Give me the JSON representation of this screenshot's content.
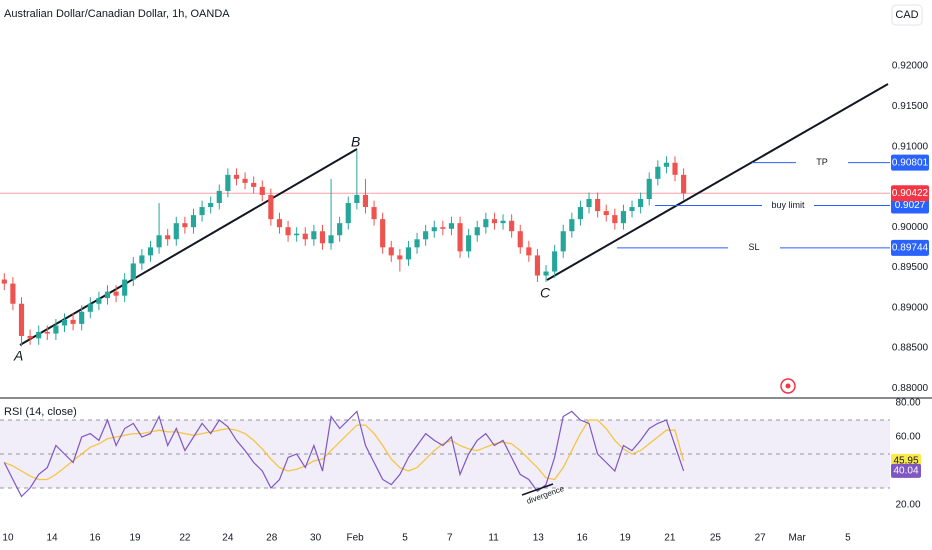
{
  "chart_data": {
    "type": "candlestick",
    "title": "Australian Dollar/Canadian Dollar, 1h, OANDA",
    "currency": "CAD",
    "up_color": "#26a69a",
    "down_color": "#ef5350",
    "open": [
      0.8935,
      0.893,
      0.8905,
      0.8865,
      0.8862,
      0.887,
      0.8868,
      0.8878,
      0.8885,
      0.888,
      0.8895,
      0.8905,
      0.8912,
      0.892,
      0.8915,
      0.8935,
      0.8955,
      0.8965,
      0.8975,
      0.899,
      0.8985,
      0.9005,
      0.9,
      0.9015,
      0.9025,
      0.903,
      0.9045,
      0.9065,
      0.906,
      0.9055,
      0.905,
      0.904,
      0.901,
      0.9,
      0.899,
      0.8992,
      0.8985,
      0.8995,
      0.898,
      0.899,
      0.9005,
      0.903,
      0.904,
      0.9025,
      0.901,
      0.8975,
      0.8965,
      0.896,
      0.8975,
      0.8985,
      0.8995,
      0.9,
      0.8998,
      0.9005,
      0.897,
      0.899,
      0.9,
      0.901,
      0.9005,
      0.9008,
      0.8995,
      0.8975,
      0.8965,
      0.894,
      0.8945,
      0.897,
      0.8995,
      0.901,
      0.9025,
      0.9035,
      0.902,
      0.9015,
      0.9005,
      0.902,
      0.9025,
      0.9035,
      0.906,
      0.9075,
      0.908,
      0.9065
    ],
    "high": [
      0.8943,
      0.8938,
      0.8913,
      0.8873,
      0.8878,
      0.8878,
      0.8886,
      0.8893,
      0.8893,
      0.8903,
      0.8913,
      0.892,
      0.8928,
      0.8928,
      0.8943,
      0.8963,
      0.8973,
      0.8983,
      0.903,
      0.8998,
      0.9013,
      0.9013,
      0.9023,
      0.9033,
      0.9038,
      0.9053,
      0.9073,
      0.9073,
      0.9068,
      0.9063,
      0.9058,
      0.9048,
      0.9018,
      0.9008,
      0.9,
      0.9,
      0.9003,
      0.9003,
      0.906,
      0.9013,
      0.9038,
      0.9095,
      0.906,
      0.9033,
      0.9018,
      0.8983,
      0.8973,
      0.8983,
      0.8993,
      0.9003,
      0.9008,
      0.9008,
      0.9013,
      0.9013,
      0.8998,
      0.9008,
      0.9018,
      0.9018,
      0.9016,
      0.9016,
      0.9003,
      0.8983,
      0.8973,
      0.8953,
      0.8978,
      0.9003,
      0.9018,
      0.9033,
      0.9043,
      0.9043,
      0.9028,
      0.9023,
      0.9028,
      0.9033,
      0.9043,
      0.9068,
      0.9083,
      0.9088,
      0.9088,
      0.9073
    ],
    "low": [
      0.8922,
      0.8897,
      0.8852,
      0.8854,
      0.8854,
      0.886,
      0.886,
      0.887,
      0.8872,
      0.8872,
      0.8887,
      0.8897,
      0.8904,
      0.8907,
      0.8907,
      0.8927,
      0.8947,
      0.8957,
      0.8967,
      0.8977,
      0.8977,
      0.8992,
      0.8992,
      0.9007,
      0.9017,
      0.9022,
      0.9037,
      0.9052,
      0.9047,
      0.9042,
      0.9032,
      0.9002,
      0.8992,
      0.8982,
      0.8982,
      0.8977,
      0.8977,
      0.8972,
      0.8972,
      0.8982,
      0.8997,
      0.9022,
      0.9017,
      0.9002,
      0.8967,
      0.8957,
      0.8945,
      0.8952,
      0.8967,
      0.8977,
      0.8987,
      0.899,
      0.899,
      0.8962,
      0.8962,
      0.8982,
      0.8992,
      0.8997,
      0.8997,
      0.8987,
      0.8967,
      0.8957,
      0.8932,
      0.8932,
      0.8937,
      0.8962,
      0.8987,
      0.9002,
      0.9017,
      0.9012,
      0.9007,
      0.8997,
      0.8997,
      0.9012,
      0.9017,
      0.9027,
      0.9052,
      0.9067,
      0.9057,
      0.9034
    ],
    "close": [
      0.893,
      0.8905,
      0.8865,
      0.8862,
      0.887,
      0.8868,
      0.8878,
      0.8885,
      0.888,
      0.8895,
      0.8905,
      0.8912,
      0.892,
      0.8915,
      0.8935,
      0.8955,
      0.8965,
      0.8975,
      0.899,
      0.8985,
      0.9005,
      0.9,
      0.9015,
      0.9025,
      0.903,
      0.9045,
      0.9065,
      0.906,
      0.9055,
      0.905,
      0.904,
      0.901,
      0.9,
      0.899,
      0.8992,
      0.8985,
      0.8995,
      0.898,
      0.899,
      0.9005,
      0.903,
      0.904,
      0.9025,
      0.901,
      0.8975,
      0.8965,
      0.896,
      0.8975,
      0.8985,
      0.8995,
      0.9,
      0.8998,
      0.9005,
      0.897,
      0.899,
      0.9,
      0.901,
      0.9005,
      0.9008,
      0.8995,
      0.8975,
      0.8965,
      0.894,
      0.8945,
      0.897,
      0.8995,
      0.901,
      0.9025,
      0.9035,
      0.902,
      0.9015,
      0.9005,
      0.902,
      0.9025,
      0.9035,
      0.906,
      0.9075,
      0.908,
      0.9065,
      0.9042
    ],
    "ylim": [
      0.8788,
      0.9282
    ],
    "yticks": [
      {
        "value": 0.88,
        "label": "0.88000"
      },
      {
        "value": 0.885,
        "label": "0.88500"
      },
      {
        "value": 0.89,
        "label": "0.89000"
      },
      {
        "value": 0.895,
        "label": "0.89500"
      },
      {
        "value": 0.9,
        "label": "0.90000"
      },
      {
        "value": 0.91,
        "label": "0.91000"
      },
      {
        "value": 0.915,
        "label": "0.91500"
      },
      {
        "value": 0.92,
        "label": "0.92000"
      }
    ],
    "xlim": [
      0,
      103.5
    ],
    "xticks": [
      {
        "value": 0.93,
        "label": "10"
      },
      {
        "value": 6.05,
        "label": "14"
      },
      {
        "value": 11.05,
        "label": "16"
      },
      {
        "value": 15.7,
        "label": "19"
      },
      {
        "value": 21.5,
        "label": "22"
      },
      {
        "value": 26.5,
        "label": "24"
      },
      {
        "value": 31.6,
        "label": "28"
      },
      {
        "value": 36.7,
        "label": "30"
      },
      {
        "value": 41.3,
        "label": "Feb"
      },
      {
        "value": 47.1,
        "label": "5"
      },
      {
        "value": 52.3,
        "label": "7"
      },
      {
        "value": 57.4,
        "label": "11"
      },
      {
        "value": 62.6,
        "label": "13"
      },
      {
        "value": 67.7,
        "label": "16"
      },
      {
        "value": 72.7,
        "label": "19"
      },
      {
        "value": 77.9,
        "label": "21"
      },
      {
        "value": 83.2,
        "label": "25"
      },
      {
        "value": 88.4,
        "label": "27"
      },
      {
        "value": 92.7,
        "label": "Mar"
      },
      {
        "value": 98.6,
        "label": "5"
      }
    ],
    "last_price": 0.90422,
    "price_lines": [
      {
        "name": "TP",
        "value": 0.90801
      },
      {
        "name": "buy limit",
        "value": 0.9027
      },
      {
        "name": "SL",
        "value": 0.89744
      }
    ],
    "annotations": [
      "A",
      "B",
      "C"
    ],
    "rsi": {
      "title": "RSI (14, close)",
      "color": "#7e57c2",
      "ma_color": "#f4c542",
      "ylim": [
        6.5,
        82.9
      ],
      "yticks": [
        {
          "value": 20,
          "label": "20.00"
        },
        {
          "value": 60,
          "label": "60.00"
        },
        {
          "value": 80,
          "label": "80.00"
        }
      ],
      "bands": [
        30,
        50,
        70
      ],
      "values": [
        45,
        35,
        25,
        30,
        38,
        42,
        55,
        50,
        45,
        60,
        62,
        58,
        70,
        55,
        65,
        68,
        60,
        62,
        72,
        55,
        65,
        52,
        60,
        68,
        62,
        70,
        66,
        58,
        52,
        45,
        40,
        30,
        35,
        48,
        50,
        42,
        55,
        40,
        72,
        65,
        70,
        75,
        55,
        45,
        35,
        32,
        38,
        48,
        55,
        62,
        58,
        55,
        60,
        38,
        50,
        58,
        62,
        55,
        58,
        48,
        38,
        35,
        28,
        32,
        48,
        72,
        75,
        70,
        68,
        50,
        45,
        40,
        55,
        52,
        58,
        65,
        68,
        70,
        55,
        40.04
      ],
      "ma": [
        45,
        43,
        40,
        37,
        35,
        35,
        38,
        42,
        46,
        50,
        54,
        56,
        59,
        60,
        61,
        62,
        62,
        63,
        64,
        63,
        63,
        62,
        61,
        62,
        63,
        64,
        65,
        64,
        62,
        58,
        53,
        47,
        42,
        40,
        41,
        43,
        46,
        47,
        52,
        57,
        62,
        67,
        67,
        62,
        55,
        47,
        42,
        40,
        42,
        47,
        52,
        56,
        58,
        55,
        53,
        52,
        54,
        56,
        57,
        56,
        52,
        47,
        42,
        36,
        35,
        42,
        52,
        62,
        70,
        70,
        65,
        58,
        53,
        50,
        52,
        56,
        60,
        64,
        64,
        45.95
      ],
      "annotation": "divergence"
    }
  }
}
